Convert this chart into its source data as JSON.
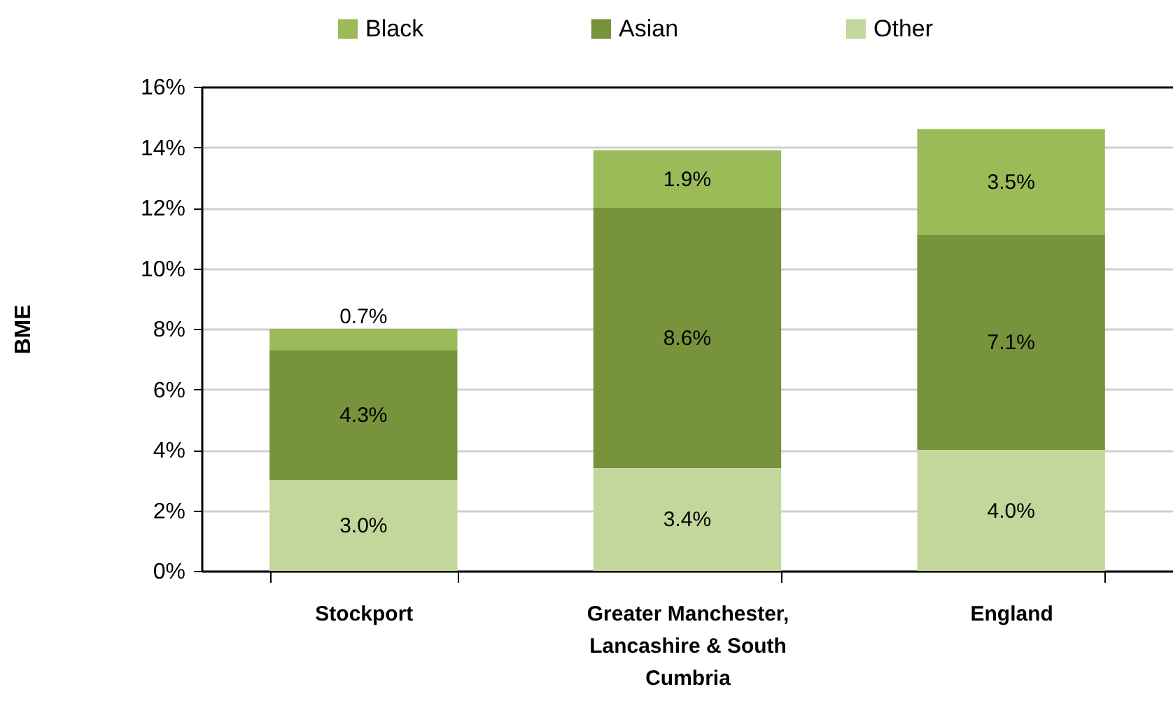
{
  "chart_data": {
    "type": "bar",
    "stacked": true,
    "ylabel": "BME",
    "categories": [
      "Stockport",
      "Greater Manchester, Lancashire & South Cumbria",
      "England"
    ],
    "series": [
      {
        "name": "Other",
        "color": "#c4d79b",
        "values": [
          3.0,
          3.4,
          4.0
        ],
        "value_labels": [
          "3.0%",
          "3.4%",
          "4.0%"
        ]
      },
      {
        "name": "Asian",
        "color": "#77933c",
        "values": [
          4.3,
          8.6,
          7.1
        ],
        "value_labels": [
          "4.3%",
          "8.6%",
          "7.1%"
        ]
      },
      {
        "name": "Black",
        "color": "#9bbb59",
        "values": [
          0.7,
          1.9,
          3.5
        ],
        "value_labels": [
          "0.7%",
          "1.9%",
          "3.5%"
        ]
      }
    ],
    "ylim": [
      0,
      16
    ],
    "yticks": [
      {
        "value": 0,
        "label": "0%"
      },
      {
        "value": 2,
        "label": "2%"
      },
      {
        "value": 4,
        "label": "4%"
      },
      {
        "value": 6,
        "label": "6%"
      },
      {
        "value": 8,
        "label": "8%"
      },
      {
        "value": 10,
        "label": "10%"
      },
      {
        "value": 12,
        "label": "12%"
      },
      {
        "value": 14,
        "label": "14%"
      },
      {
        "value": 16,
        "label": "16%"
      }
    ],
    "grid": "y",
    "legend": "top"
  }
}
